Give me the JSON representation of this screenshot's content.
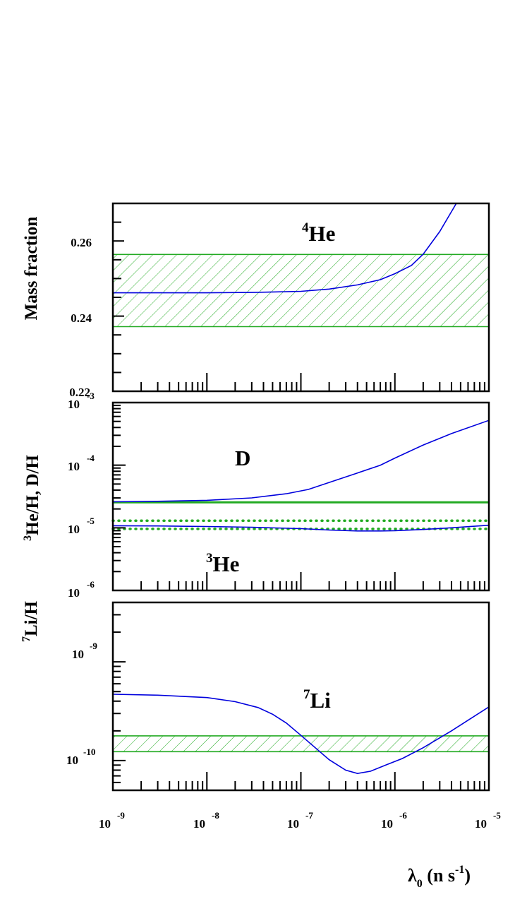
{
  "chart_data": [
    {
      "type": "line",
      "panel": "top",
      "ylabel": "Mass fraction",
      "yscale": "linear",
      "ylim": [
        0.22,
        0.27
      ],
      "yticks": [
        {
          "v": 0.24,
          "label": "0.24"
        },
        {
          "v": 0.26,
          "label": "0.26"
        }
      ],
      "ymin_label": "0.22",
      "annotation": {
        "sup": "4",
        "text": "He"
      },
      "series": [
        {
          "x": [
            1e-09,
            3e-09,
            1e-08,
            3e-08,
            1e-07,
            2e-07,
            4e-07,
            7e-07,
            1e-06,
            1.5e-06,
            2e-06,
            3e-06,
            4.5e-06,
            6.5e-06
          ],
          "y": [
            0.2462,
            0.2462,
            0.2462,
            0.2463,
            0.2466,
            0.2472,
            0.2483,
            0.2497,
            0.2513,
            0.2535,
            0.2565,
            0.2625,
            0.27,
            0.278
          ]
        }
      ],
      "band": {
        "y_low": 0.2372,
        "y_high": 0.2564,
        "hatched": true
      }
    },
    {
      "type": "line",
      "panel": "middle",
      "ylabel": {
        "sup": "3",
        "text": "He/H, D/H"
      },
      "yscale": "log",
      "ylim": [
        1e-06,
        0.001
      ],
      "yticks": [
        {
          "v": 1e-06,
          "base": "10",
          "exp": "-6"
        },
        {
          "v": 1e-05,
          "base": "10",
          "exp": "-5"
        },
        {
          "v": 0.0001,
          "base": "10",
          "exp": "-4"
        },
        {
          "v": 0.001,
          "base": "10",
          "exp": "-3"
        }
      ],
      "annotations": [
        {
          "text": "D"
        },
        {
          "sup": "3",
          "text": "He"
        }
      ],
      "series": [
        {
          "label": "D",
          "x": [
            1e-09,
            3e-09,
            1e-08,
            3e-08,
            7e-08,
            1.2e-07,
            2e-07,
            4e-07,
            7e-07,
            1e-06,
            2e-06,
            4e-06,
            1e-05
          ],
          "y": [
            2.6e-05,
            2.65e-05,
            2.75e-05,
            3e-05,
            3.5e-05,
            4.1e-05,
            5.3e-05,
            7.5e-05,
            0.0001,
            0.00013,
            0.00021,
            0.00032,
            0.00052
          ]
        },
        {
          "label": "3He",
          "x": [
            1e-09,
            3e-09,
            1e-08,
            3e-08,
            1e-07,
            2e-07,
            4e-07,
            7e-07,
            1e-06,
            2e-06,
            4e-06,
            1e-05
          ],
          "y": [
            1.08e-05,
            1.07e-05,
            1.05e-05,
            1.02e-05,
            9.7e-06,
            9.2e-06,
            8.9e-06,
            8.9e-06,
            9e-06,
            9.4e-06,
            1e-05,
            1.1e-05
          ]
        }
      ],
      "obs_lines": [
        {
          "y": 2.55e-05,
          "style": "solid"
        },
        {
          "y": 1.3e-05,
          "style": "dotted"
        },
        {
          "y": 9.6e-06,
          "style": "dotted"
        }
      ]
    },
    {
      "type": "line",
      "panel": "bottom",
      "ylabel": {
        "sup": "7",
        "text": "Li/H"
      },
      "yscale": "log",
      "ylim": [
        5e-11,
        4e-09
      ],
      "yticks": [
        {
          "v": 1e-10,
          "base": "10",
          "exp": "-10"
        },
        {
          "v": 1e-09,
          "base": "10",
          "exp": "-9"
        }
      ],
      "annotation": {
        "sup": "7",
        "text": "Li"
      },
      "series": [
        {
          "x": [
            1e-09,
            3e-09,
            1e-08,
            2e-08,
            3.5e-08,
            5e-08,
            7e-08,
            1e-07,
            2e-07,
            3e-07,
            4e-07,
            5.5e-07,
            8e-07,
            1.2e-06,
            2e-06,
            4e-06,
            1e-05
          ],
          "y": [
            4.7e-10,
            4.6e-10,
            4.35e-10,
            3.95e-10,
            3.45e-10,
            2.95e-10,
            2.4e-10,
            1.8e-10,
            1.02e-10,
            8e-11,
            7.4e-11,
            7.8e-11,
            9e-11,
            1.05e-10,
            1.35e-10,
            2e-10,
            3.5e-10
          ]
        }
      ],
      "band": {
        "y_low": 1.23e-10,
        "y_high": 1.78e-10,
        "hatched": true
      }
    }
  ],
  "xaxis": {
    "scale": "log",
    "xlim": [
      1e-09,
      1e-05
    ],
    "ticklabels": [
      {
        "v": 1e-09,
        "base": "10",
        "exp": "-9"
      },
      {
        "v": 1e-08,
        "base": "10",
        "exp": "-8"
      },
      {
        "v": 1e-07,
        "base": "10",
        "exp": "-7"
      },
      {
        "v": 1e-06,
        "base": "10",
        "exp": "-6"
      },
      {
        "v": 1e-05,
        "base": "10",
        "exp": "-5"
      }
    ],
    "label": {
      "symbol": "λ",
      "sub": "0",
      "text": " (n s",
      "sup": "-1",
      "close": ")"
    }
  },
  "colors": {
    "curve": "#0000dd",
    "observation": "#22aa22",
    "axes": "#000000"
  }
}
